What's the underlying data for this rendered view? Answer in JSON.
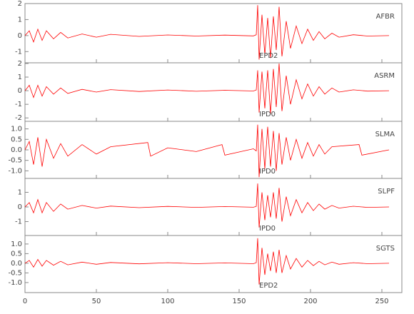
{
  "chart_data": [
    {
      "type": "line",
      "phase": "EPD2",
      "x": [
        0,
        3,
        6,
        9,
        12,
        15,
        20,
        25,
        30,
        40,
        50,
        60,
        80,
        100,
        120,
        140,
        160,
        162,
        163,
        164,
        166,
        168,
        170,
        172,
        174,
        176,
        178,
        180,
        183,
        186,
        190,
        194,
        198,
        202,
        206,
        210,
        215,
        220,
        230,
        240,
        255
      ],
      "series": [
        {
          "name": "AFBR",
          "color": "#ff0000",
          "values": [
            0,
            0.3,
            -0.4,
            0.4,
            -0.3,
            0.3,
            -0.2,
            0.2,
            -0.15,
            0.1,
            -0.1,
            0.08,
            -0.05,
            0.04,
            -0.03,
            0.03,
            -0.02,
            0.05,
            1.9,
            -1.5,
            1.3,
            -1.2,
            1.1,
            -1.4,
            1.2,
            -0.9,
            1.8,
            -1.3,
            0.9,
            -0.8,
            0.6,
            -0.5,
            0.4,
            -0.3,
            0.25,
            -0.2,
            0.15,
            -0.1,
            0.05,
            -0.03,
            0
          ]
        }
      ],
      "ylim": [
        -1.7,
        2
      ],
      "yticks": [
        -1,
        0,
        1,
        2
      ]
    },
    {
      "type": "line",
      "phase": "IPD0",
      "x": [
        0,
        3,
        6,
        9,
        12,
        15,
        20,
        25,
        30,
        40,
        50,
        60,
        80,
        100,
        120,
        140,
        160,
        162,
        163,
        164,
        166,
        168,
        170,
        172,
        174,
        176,
        178,
        180,
        183,
        186,
        190,
        194,
        198,
        202,
        206,
        210,
        215,
        220,
        230,
        240,
        255
      ],
      "series": [
        {
          "name": "ASRM",
          "color": "#ff0000",
          "values": [
            0,
            0.4,
            -0.5,
            0.4,
            -0.4,
            0.3,
            -0.25,
            0.2,
            -0.2,
            0.1,
            -0.1,
            0.08,
            -0.06,
            0.05,
            -0.04,
            0.03,
            -0.02,
            0.05,
            1.5,
            -1.6,
            1.4,
            -1.3,
            1.5,
            -1.7,
            1.6,
            -1.2,
            2.0,
            -1.5,
            1.1,
            -1.0,
            0.8,
            -0.6,
            0.5,
            -0.4,
            0.3,
            -0.25,
            0.2,
            -0.1,
            0.06,
            -0.03,
            0
          ]
        }
      ],
      "ylim": [
        -2.25,
        2.05
      ],
      "yticks": [
        -2,
        -1,
        0,
        1,
        2
      ]
    },
    {
      "type": "line",
      "phase": "IPD0",
      "x": [
        0,
        3,
        6,
        9,
        12,
        15,
        20,
        25,
        30,
        40,
        50,
        60,
        86,
        88,
        100,
        120,
        138,
        140,
        160,
        162,
        163,
        164,
        166,
        168,
        170,
        172,
        174,
        176,
        178,
        180,
        183,
        186,
        190,
        194,
        198,
        202,
        206,
        210,
        215,
        234,
        236,
        255
      ],
      "series": [
        {
          "name": "SLMA",
          "color": "#ff0000",
          "values": [
            0,
            0.4,
            -0.7,
            0.6,
            -0.8,
            0.5,
            -0.4,
            0.3,
            -0.3,
            0.25,
            -0.2,
            0.15,
            0.35,
            -0.3,
            0.1,
            -0.08,
            0.25,
            -0.25,
            0.05,
            -0.05,
            1.2,
            -1.3,
            1.0,
            -0.9,
            1.1,
            -0.8,
            0.9,
            -1.0,
            0.8,
            -0.7,
            0.6,
            -0.5,
            0.5,
            -0.4,
            0.35,
            -0.3,
            0.25,
            -0.2,
            0.15,
            0.25,
            -0.25,
            0
          ]
        }
      ],
      "ylim": [
        -1.36,
        1.36
      ],
      "yticks": [
        {
          "value": -1,
          "label": "-1.0"
        },
        -0.5,
        {
          "value": 0,
          "label": "0.0"
        },
        0.5,
        {
          "value": 1,
          "label": "1.0"
        }
      ]
    },
    {
      "type": "line",
      "phase": "IPD0",
      "x": [
        0,
        3,
        6,
        9,
        12,
        15,
        20,
        25,
        30,
        40,
        50,
        60,
        80,
        100,
        120,
        140,
        160,
        162,
        163,
        164,
        166,
        168,
        170,
        172,
        174,
        176,
        178,
        180,
        183,
        186,
        190,
        194,
        198,
        202,
        206,
        210,
        215,
        220,
        230,
        240,
        255
      ],
      "series": [
        {
          "name": "SLPF",
          "color": "#ff0000",
          "values": [
            0,
            0.3,
            -0.4,
            0.5,
            -0.4,
            0.3,
            -0.3,
            0.2,
            -0.15,
            0.1,
            -0.08,
            0.06,
            -0.05,
            0.04,
            -0.03,
            0.03,
            -0.02,
            0.04,
            1.6,
            -1.4,
            1.0,
            -0.9,
            0.8,
            -0.7,
            1.0,
            -0.8,
            1.3,
            -1.0,
            0.7,
            -0.6,
            0.5,
            -0.4,
            0.3,
            -0.25,
            0.2,
            -0.15,
            0.1,
            -0.08,
            0.05,
            -0.03,
            0
          ]
        }
      ],
      "ylim": [
        -1.95,
        1.95
      ],
      "yticks": [
        -1,
        0,
        1
      ]
    },
    {
      "type": "line",
      "phase": "EPD2",
      "x": [
        0,
        3,
        6,
        9,
        12,
        15,
        20,
        25,
        30,
        40,
        50,
        60,
        80,
        100,
        120,
        140,
        160,
        162,
        163,
        164,
        166,
        168,
        170,
        172,
        174,
        176,
        178,
        180,
        183,
        186,
        190,
        194,
        198,
        202,
        206,
        210,
        215,
        220,
        230,
        240,
        255
      ],
      "series": [
        {
          "name": "SGTS",
          "color": "#ff0000",
          "values": [
            0,
            0.15,
            -0.2,
            0.2,
            -0.15,
            0.15,
            -0.1,
            0.1,
            -0.08,
            0.06,
            -0.05,
            0.04,
            -0.03,
            0.03,
            -0.02,
            0.02,
            -0.02,
            0.03,
            1.3,
            -1.1,
            0.8,
            -0.6,
            0.5,
            -0.4,
            0.6,
            -0.5,
            0.7,
            -0.5,
            0.4,
            -0.3,
            0.25,
            -0.2,
            0.15,
            -0.12,
            0.1,
            -0.08,
            0.06,
            -0.05,
            0.03,
            -0.02,
            0
          ]
        }
      ],
      "ylim": [
        -1.52,
        1.44
      ],
      "yticks": [
        {
          "value": -1,
          "label": "-1.0"
        },
        -0.5,
        {
          "value": 0,
          "label": "0.0"
        },
        0.5,
        {
          "value": 1,
          "label": "1.0"
        }
      ],
      "xlim": [
        0,
        264
      ],
      "xticks": [
        0,
        50,
        100,
        150,
        200,
        250
      ]
    }
  ]
}
